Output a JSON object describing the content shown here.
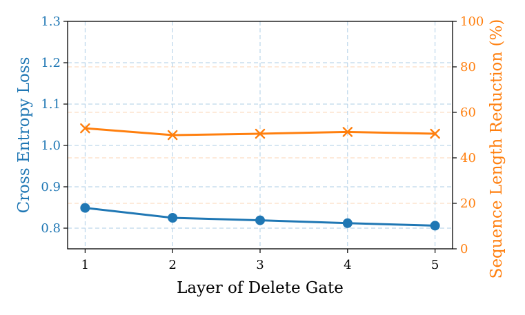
{
  "chart_data": {
    "type": "line",
    "xlabel": "Layer of Delete Gate",
    "ylabel_left": "Cross Entropy Loss",
    "ylabel_right": "Sequence Length Reduction (%)",
    "x": [
      1,
      2,
      3,
      4,
      5
    ],
    "x_ticks": [
      "1",
      "2",
      "3",
      "4",
      "5"
    ],
    "xlim": [
      0.8,
      5.2
    ],
    "ylim_left": [
      0.75,
      1.3
    ],
    "yticks_left": [
      "0.8",
      "0.9",
      "1.0",
      "1.1",
      "1.2",
      "1.3"
    ],
    "ylim_right": [
      0,
      100
    ],
    "yticks_right": [
      "0",
      "20",
      "40",
      "60",
      "80",
      "100"
    ],
    "grid": true,
    "series": [
      {
        "axis": "left",
        "marker": "circle",
        "color": "#1f77b4",
        "values": [
          0.849,
          0.825,
          0.819,
          0.812,
          0.806
        ]
      },
      {
        "axis": "right",
        "marker": "x",
        "color": "#ff7f0e",
        "values": [
          53.0,
          50.0,
          50.6,
          51.4,
          50.6
        ]
      }
    ]
  }
}
